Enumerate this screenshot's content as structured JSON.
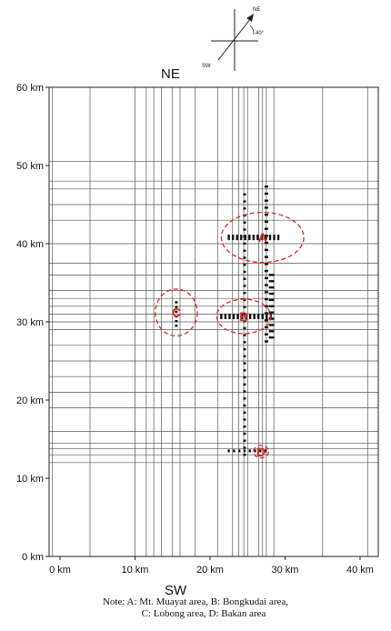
{
  "compass": {
    "ne_label": "NE",
    "sw_label": "SW",
    "angle_label": "40°"
  },
  "top_direction_label": "NE",
  "bottom_direction_label": "SW",
  "y_axis": {
    "ticks": [
      {
        "value": 0,
        "label": "0 km"
      },
      {
        "value": 10,
        "label": "10 km"
      },
      {
        "value": 20,
        "label": "20 km"
      },
      {
        "value": 30,
        "label": "30 km"
      },
      {
        "value": 40,
        "label": "40 km"
      },
      {
        "value": 50,
        "label": "50 km"
      },
      {
        "value": 60,
        "label": "60 km"
      }
    ],
    "range": [
      0,
      60
    ]
  },
  "x_axis": {
    "ticks": [
      {
        "value": 0,
        "label": "0 km"
      },
      {
        "value": 10,
        "label": "10 km"
      },
      {
        "value": 20,
        "label": "20 km"
      },
      {
        "value": 30,
        "label": "30 km"
      },
      {
        "value": 40,
        "label": "40 km"
      }
    ],
    "range": [
      -2,
      43
    ]
  },
  "grid": {
    "vertical_lines_km": [
      -1,
      4,
      10,
      11.5,
      12.5,
      13.5,
      15,
      16,
      18,
      21,
      23,
      23.8,
      24.5,
      25,
      26.5,
      27,
      27.5,
      28.5,
      35,
      41
    ],
    "horizontal_lines_km": [
      12,
      13,
      13.8,
      14.5,
      16,
      19,
      21,
      23,
      25,
      27,
      29,
      30,
      31,
      32,
      33,
      34,
      36,
      37.5,
      40,
      43,
      45,
      47,
      48,
      50.5
    ]
  },
  "areas": [
    {
      "id": "A",
      "label": "A",
      "x_km": 27,
      "y_km": 40.8,
      "rx_km": 5.5,
      "ry_km": 3.2
    },
    {
      "id": "B",
      "label": "B",
      "x_km": 24.5,
      "y_km": 30.7,
      "rx_km": 3.6,
      "ry_km": 2.2
    },
    {
      "id": "C",
      "label": "C",
      "x_km": 15.5,
      "y_km": 31.2,
      "rx_km": 2.8,
      "ry_km": 3.0
    },
    {
      "id": "D",
      "label": "D",
      "x_km": 26.8,
      "y_km": 13.4,
      "rx_km": 1.0,
      "ry_km": 0.8
    }
  ],
  "note": {
    "line1": "Note:  A: Mt. Muayat area, B: Bongkudai area,",
    "line2": "C: Lobong area, D: Bakan area"
  }
}
